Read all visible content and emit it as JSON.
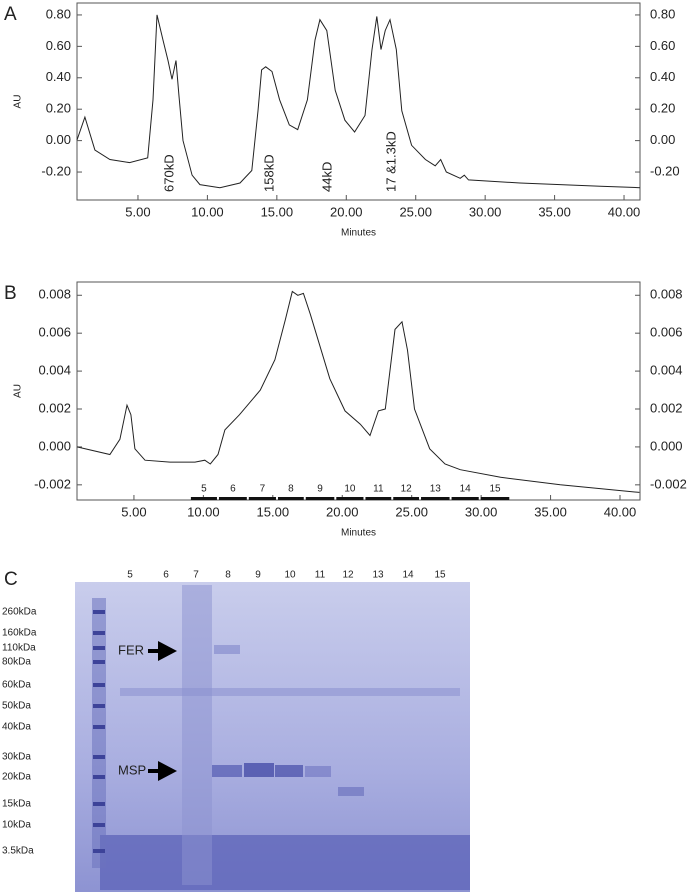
{
  "chart_data": [
    {
      "type": "line",
      "panel": "A",
      "xlabel": "Minutes",
      "ylabel": "AU",
      "x": [
        0.61,
        1.18,
        1.9,
        2.98,
        4.4,
        5.7,
        6.08,
        6.37,
        6.8,
        7.16,
        7.45,
        7.74,
        7.95,
        8.24,
        8.9,
        9.46,
        10.9,
        12.35,
        13.2,
        13.64,
        13.9,
        14.2,
        14.65,
        15.2,
        15.9,
        16.5,
        17.2,
        17.75,
        18.1,
        18.6,
        19.2,
        19.9,
        20.6,
        21.35,
        21.85,
        22.2,
        22.5,
        22.8,
        23.15,
        23.6,
        24.0,
        24.7,
        25.7,
        26.4,
        26.8,
        27.2,
        28.2,
        28.5,
        28.8,
        32.5,
        38.3,
        41.15
      ],
      "values": [
        0.004,
        0.15,
        -0.06,
        -0.12,
        -0.14,
        -0.11,
        0.26,
        0.8,
        0.64,
        0.51,
        0.39,
        0.51,
        0.29,
        0.0,
        -0.22,
        -0.28,
        -0.3,
        -0.27,
        -0.19,
        0.19,
        0.45,
        0.47,
        0.44,
        0.26,
        0.1,
        0.07,
        0.26,
        0.64,
        0.77,
        0.7,
        0.32,
        0.13,
        0.055,
        0.16,
        0.58,
        0.79,
        0.58,
        0.7,
        0.77,
        0.58,
        0.19,
        -0.03,
        -0.12,
        -0.16,
        -0.12,
        -0.2,
        -0.24,
        -0.22,
        -0.25,
        -0.27,
        -0.29,
        -0.3
      ],
      "color": "#222222",
      "xlim": [
        0.61,
        41.15
      ],
      "ylim": [
        -0.378,
        0.876
      ],
      "xticks": [
        {
          "value": 5,
          "label": "5.00"
        },
        {
          "value": 10,
          "label": "10.00"
        },
        {
          "value": 15,
          "label": "15.00"
        },
        {
          "value": 20,
          "label": "20.00"
        },
        {
          "value": 25,
          "label": "25.00"
        },
        {
          "value": 30,
          "label": "30.00"
        },
        {
          "value": 35,
          "label": "35.00"
        },
        {
          "value": 40,
          "label": "40.00"
        }
      ],
      "yticks": [
        {
          "value": 0.8,
          "label": "0.80"
        },
        {
          "value": 0.6,
          "label": "0.60"
        },
        {
          "value": 0.4,
          "label": "0.40"
        },
        {
          "value": 0.2,
          "label": "0.20"
        },
        {
          "value": 0,
          "label": "0.00"
        },
        {
          "value": -0.2,
          "label": "-0.20"
        }
      ],
      "annotations": [
        "670kD",
        "158kD",
        "44kD",
        "17 &1.3kD"
      ]
    },
    {
      "type": "line",
      "panel": "B",
      "xlabel": "Minutes",
      "ylabel": "AU",
      "x": [
        0.9,
        3.27,
        3.99,
        4.5,
        4.78,
        5.07,
        5.8,
        7.6,
        9.4,
        10.1,
        10.5,
        11.05,
        11.55,
        12.6,
        14.1,
        15.15,
        15.9,
        16.4,
        16.8,
        17.2,
        17.7,
        19.1,
        20.2,
        21.3,
        22.0,
        22.6,
        23.1,
        23.8,
        24.3,
        24.7,
        25.2,
        26.3,
        27.4,
        28.5,
        31.4,
        35.7,
        41.4
      ],
      "values": [
        0.0,
        -0.0004,
        0.0004,
        0.0022,
        0.0017,
        -0.0001,
        -0.0007,
        -0.0008,
        -0.0008,
        -0.0007,
        -0.0009,
        -0.0004,
        0.0009,
        0.0017,
        0.003,
        0.0046,
        0.0067,
        0.0082,
        0.008,
        0.0081,
        0.007,
        0.0036,
        0.0019,
        0.0012,
        0.0006,
        0.0019,
        0.002,
        0.0062,
        0.0066,
        0.0051,
        0.002,
        -0.0001,
        -0.0009,
        -0.0012,
        -0.0016,
        -0.002,
        -0.0024
      ],
      "color": "#222222",
      "xlim": [
        0.9,
        41.44
      ],
      "ylim": [
        -0.0028,
        0.0087
      ],
      "xticks": [
        {
          "value": 5,
          "label": "5.00"
        },
        {
          "value": 10,
          "label": "10.00"
        },
        {
          "value": 15,
          "label": "15.00"
        },
        {
          "value": 20,
          "label": "20.00"
        },
        {
          "value": 25,
          "label": "25.00"
        },
        {
          "value": 30,
          "label": "30.00"
        },
        {
          "value": 35,
          "label": "35.00"
        },
        {
          "value": 40,
          "label": "40.00"
        }
      ],
      "yticks": [
        0.008,
        0.006,
        0.004,
        0.002,
        {
          "value": 0,
          "label": "0.000"
        },
        -0.002
      ],
      "fractions": {
        "labels": [
          "5",
          "6",
          "7",
          "8",
          "9",
          "10",
          "11",
          "12",
          "13",
          "14",
          "15"
        ],
        "edges": [
          9.03,
          11.05,
          13.2,
          15.3,
          17.3,
          19.5,
          21.6,
          23.6,
          25.6,
          27.8,
          29.9,
          32.1
        ]
      }
    }
  ],
  "gel": {
    "panel": "C",
    "lanes": [
      "5",
      "6",
      "7",
      "8",
      "9",
      "10",
      "11",
      "12",
      "13",
      "14",
      "15"
    ],
    "markers": [
      "260kDa",
      "160kDa",
      "110kDa",
      "80kDa",
      "60kDa",
      "50kDa",
      "40kDa",
      "30kDa",
      "20kDa",
      "15kDa",
      "10kDa",
      "3.5kDa"
    ],
    "arrows": [
      "FER",
      "MSP"
    ]
  }
}
